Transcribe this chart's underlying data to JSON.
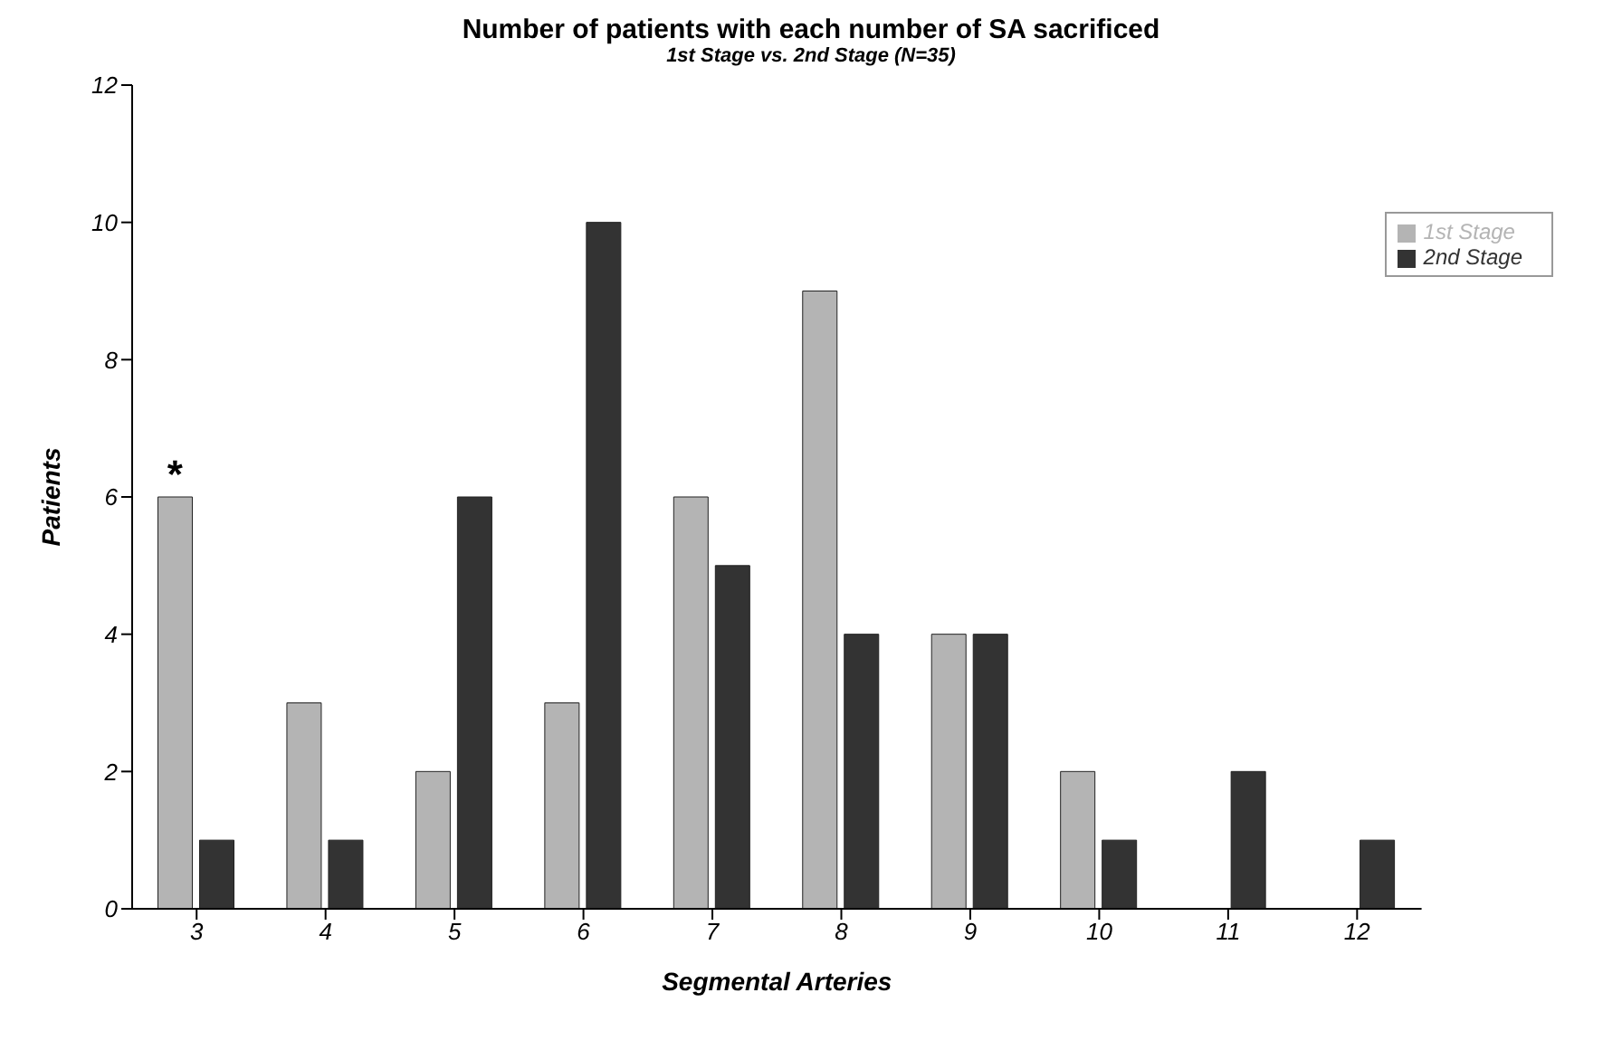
{
  "chart_data": {
    "type": "bar",
    "title": "Number of patients with each number of SA sacrificed",
    "subtitle": "1st Stage vs. 2nd Stage (N=35)",
    "xlabel": "Segmental Arteries",
    "ylabel": "Patients",
    "categories": [
      "3",
      "4",
      "5",
      "6",
      "7",
      "8",
      "9",
      "10",
      "11",
      "12"
    ],
    "series": [
      {
        "name": "1st Stage",
        "color": "#b4b4b4",
        "values": [
          6,
          3,
          2,
          3,
          6,
          9,
          4,
          2,
          0,
          0
        ]
      },
      {
        "name": "2nd Stage",
        "color": "#333333",
        "values": [
          1,
          1,
          6,
          10,
          5,
          4,
          4,
          1,
          2,
          1
        ]
      }
    ],
    "ylim": [
      0,
      12
    ],
    "yticks": [
      0,
      2,
      4,
      6,
      8,
      10,
      12
    ],
    "grid": false,
    "legend": "top right",
    "annotations": [
      {
        "text": "*",
        "x": "3",
        "y": 6
      }
    ]
  }
}
